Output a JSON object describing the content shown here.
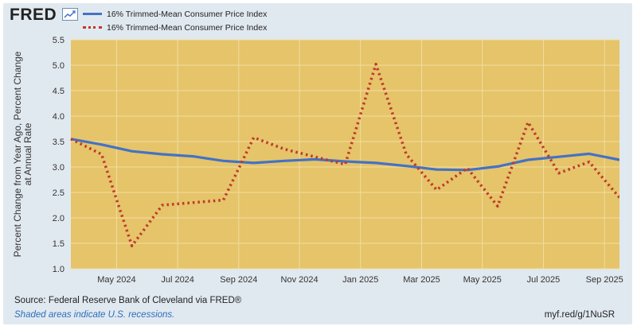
{
  "header": {
    "logo_text": "FRED",
    "logo_icon": "trend-chart-icon"
  },
  "legend": {
    "items": [
      {
        "label": "16% Trimmed-Mean Consumer Price Index",
        "style": "solid",
        "color": "#4472c4"
      },
      {
        "label": "16% Trimmed-Mean Consumer Price Index",
        "style": "dotted",
        "color": "#c0392b"
      }
    ]
  },
  "chart_data": {
    "type": "line",
    "ylabel_lines": [
      "Percent Change from Year Ago, Percent Change",
      "at Annual Rate"
    ],
    "ylim": [
      1.0,
      5.5
    ],
    "yticks": [
      "1.0",
      "1.5",
      "2.0",
      "2.5",
      "3.0",
      "3.5",
      "4.0",
      "4.5",
      "5.0",
      "5.5"
    ],
    "x_range": [
      2024.208,
      2025.708
    ],
    "xticks": [
      {
        "label": "May 2024",
        "x": 2024.333
      },
      {
        "label": "Jul 2024",
        "x": 2024.5
      },
      {
        "label": "Sep 2024",
        "x": 2024.667
      },
      {
        "label": "Nov 2024",
        "x": 2024.833
      },
      {
        "label": "Jan 2025",
        "x": 2025.0
      },
      {
        "label": "Mar 2025",
        "x": 2025.167
      },
      {
        "label": "May 2025",
        "x": 2025.333
      },
      {
        "label": "Jul 2025",
        "x": 2025.5
      },
      {
        "label": "Sep 2025",
        "x": 2025.667
      }
    ],
    "plot_background": "#e5c46a",
    "series": [
      {
        "name": "16% Trimmed-Mean Consumer Price Index",
        "style": "solid",
        "color": "#4472c4",
        "x": [
          2024.208,
          2024.292,
          2024.375,
          2024.458,
          2024.542,
          2024.625,
          2024.708,
          2024.792,
          2024.875,
          2024.958,
          2025.042,
          2025.125,
          2025.208,
          2025.292,
          2025.375,
          2025.458,
          2025.542,
          2025.625,
          2025.708
        ],
        "values": [
          3.55,
          3.44,
          3.31,
          3.25,
          3.21,
          3.12,
          3.08,
          3.12,
          3.15,
          3.11,
          3.08,
          3.02,
          2.95,
          2.94,
          3.01,
          3.14,
          3.2,
          3.26,
          3.14
        ]
      },
      {
        "name": "16% Trimmed-Mean Consumer Price Index",
        "style": "dotted",
        "color": "#c0392b",
        "x": [
          2024.208,
          2024.292,
          2024.375,
          2024.458,
          2024.542,
          2024.625,
          2024.708,
          2024.792,
          2024.875,
          2024.958,
          2025.042,
          2025.125,
          2025.208,
          2025.292,
          2025.375,
          2025.458,
          2025.542,
          2025.625,
          2025.708
        ],
        "values": [
          3.55,
          3.25,
          1.45,
          2.25,
          2.3,
          2.35,
          3.58,
          3.35,
          3.2,
          3.05,
          5.02,
          3.25,
          2.55,
          2.98,
          2.23,
          3.88,
          2.88,
          3.1,
          2.4
        ]
      }
    ]
  },
  "footer": {
    "source": "Source: Federal Reserve Bank of Cleveland via FRED®",
    "note": "Shaded areas indicate U.S. recessions.",
    "shortlink": "myf.red/g/1NuSR"
  }
}
